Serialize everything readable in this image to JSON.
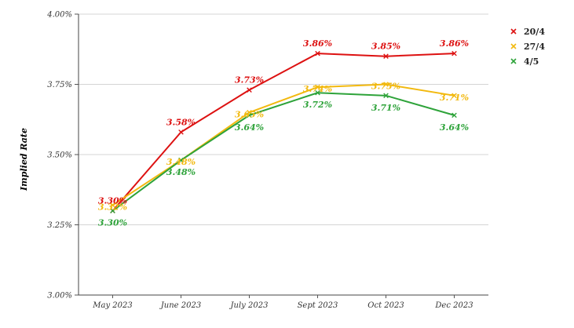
{
  "chart_data": {
    "type": "line",
    "title": "",
    "xlabel": "",
    "ylabel": "Implied Rate",
    "categories": [
      "May 2023",
      "June 2023",
      "July 2023",
      "Sept 2023",
      "Oct 2023",
      "Dec 2023"
    ],
    "ylim": [
      3.0,
      4.0
    ],
    "yticks": [
      3.0,
      3.25,
      3.5,
      3.75,
      4.0
    ],
    "ytick_labels": [
      "3.00%",
      "3.25%",
      "3.50%",
      "3.75%",
      "4.00%"
    ],
    "grid": "horizontal",
    "legend_position": "top-right",
    "series": [
      {
        "name": "20/4",
        "color": "#dd1111",
        "values": [
          3.3,
          3.58,
          3.73,
          3.86,
          3.85,
          3.86
        ],
        "labels": [
          "3.30%",
          "3.58%",
          "3.73%",
          "3.86%",
          "3.85%",
          "3.86%"
        ]
      },
      {
        "name": "27/4",
        "color": "#f2b90f",
        "values": [
          3.32,
          3.48,
          3.65,
          3.74,
          3.75,
          3.71
        ],
        "labels": [
          "3.32%",
          "3.48%",
          "3.65%",
          "3.74%",
          "3.75%",
          "3.71%"
        ]
      },
      {
        "name": "4/5",
        "color": "#2ea33a",
        "values": [
          3.3,
          3.48,
          3.64,
          3.72,
          3.71,
          3.64
        ],
        "labels": [
          "3.30%",
          "3.48%",
          "3.64%",
          "3.72%",
          "3.71%",
          "3.64%"
        ]
      }
    ]
  }
}
